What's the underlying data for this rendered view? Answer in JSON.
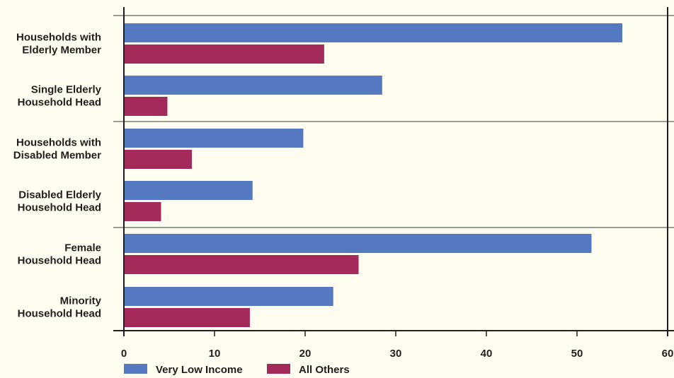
{
  "chart_data": {
    "type": "bar",
    "orientation": "horizontal",
    "categories": [
      [
        "Households with",
        "Elderly Member"
      ],
      [
        "Single Elderly",
        "Household Head"
      ],
      [
        "Households with",
        "Disabled Member"
      ],
      [
        "Disabled Elderly",
        "Household Head"
      ],
      [
        "Female",
        "Household Head"
      ],
      [
        "Minority",
        "Household Head"
      ]
    ],
    "series": [
      {
        "name": "Very Low Income",
        "color": "#5479c0",
        "values": [
          55,
          28.5,
          19.8,
          14.2,
          51.6,
          23.1
        ]
      },
      {
        "name": "All Others",
        "color": "#a52a5c",
        "values": [
          22.1,
          4.8,
          7.5,
          4.1,
          25.9,
          13.9
        ]
      }
    ],
    "x_ticks": [
      "0",
      "10",
      "20",
      "30",
      "40",
      "50",
      "60"
    ],
    "xlim": [
      0,
      60
    ],
    "title": "",
    "xlabel": "",
    "ylabel": "",
    "legend_position": "bottom-left"
  }
}
